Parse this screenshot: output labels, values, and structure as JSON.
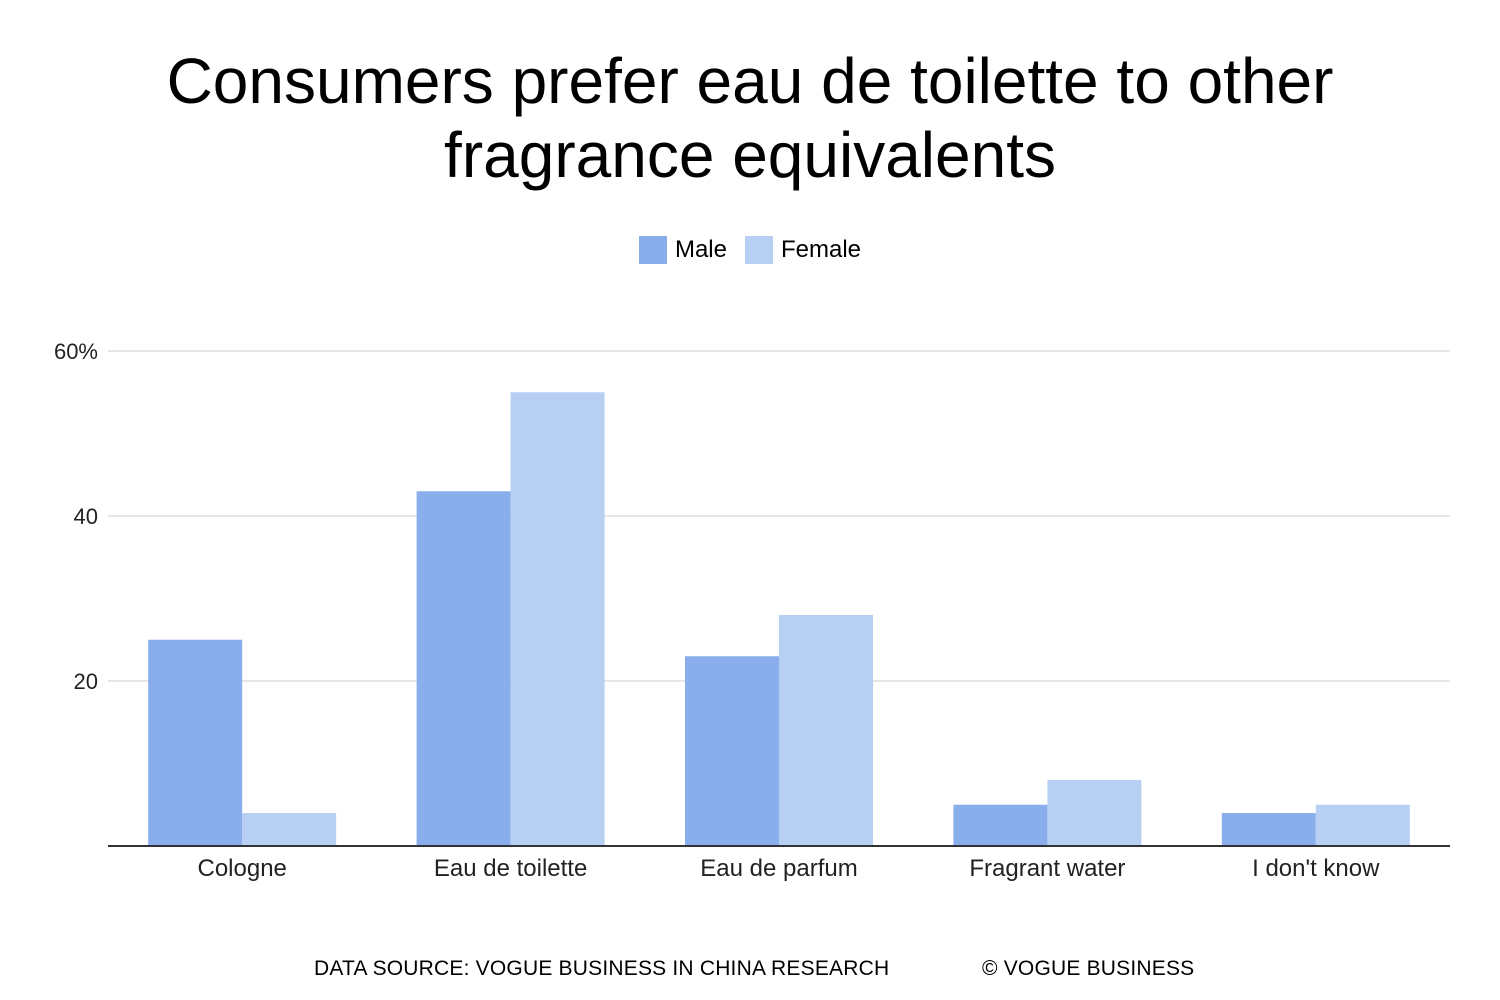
{
  "title": "Consumers prefer eau de toilette to other fragrance equivalents",
  "legend": {
    "male_label": "Male",
    "female_label": "Female"
  },
  "footer": {
    "source": "DATA SOURCE: VOGUE BUSINESS IN CHINA RESEARCH",
    "copyright": "© VOGUE BUSINESS"
  },
  "colors": {
    "male": "#8aaeec",
    "female": "#b8cff4",
    "grid": "#dddddd",
    "axis": "#333333",
    "text": "#222222"
  },
  "chart_data": {
    "type": "bar",
    "title": "Consumers prefer eau de toilette to other fragrance equivalents",
    "categories": [
      "Cologne",
      "Eau de toilette",
      "Eau de parfum",
      "Fragrant water",
      "I don't know"
    ],
    "series": [
      {
        "name": "Male",
        "values": [
          25,
          43,
          23,
          5,
          4
        ]
      },
      {
        "name": "Female",
        "values": [
          4,
          55,
          28,
          8,
          5
        ]
      }
    ],
    "yticks": [
      {
        "value": 20,
        "label": "20"
      },
      {
        "value": 40,
        "label": "40"
      },
      {
        "value": 60,
        "label": "60%"
      }
    ],
    "ylim": [
      0,
      60
    ],
    "xlabel": "",
    "ylabel": "",
    "grid": true,
    "legend_position": "top-center"
  }
}
